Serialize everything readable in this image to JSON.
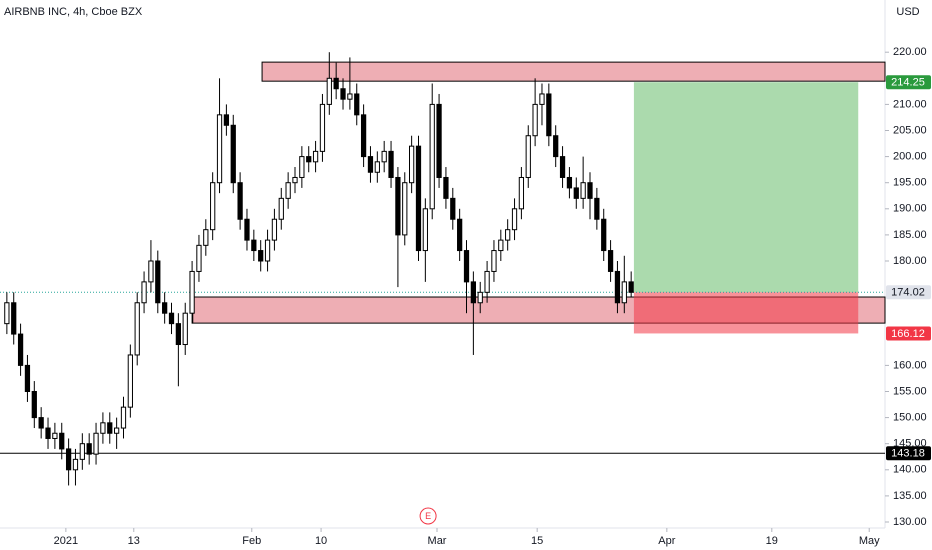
{
  "chart_data": {
    "type": "candlestick",
    "title": "AIRBNB INC, 4h, Cboe BZX",
    "currency": "USD",
    "up_color": "#ffffff",
    "down_color": "#000000",
    "border_color": "#000000",
    "open": [
      168,
      172,
      166,
      160,
      155,
      150,
      148,
      146,
      147,
      144,
      140,
      142,
      145,
      143,
      147,
      149,
      147,
      148,
      152,
      162,
      172,
      176,
      180,
      172,
      170,
      168,
      164,
      170,
      178,
      183,
      186,
      195,
      208,
      206,
      195,
      188,
      184,
      182,
      180,
      184,
      188,
      192,
      195,
      196,
      200,
      199,
      201,
      210,
      215,
      213,
      211,
      212,
      208,
      200,
      197,
      199,
      201,
      196,
      185,
      195,
      202,
      182,
      190,
      210,
      196,
      192,
      188,
      182,
      176,
      172,
      174,
      178,
      182,
      184,
      186,
      190,
      196,
      204,
      210,
      212,
      204,
      200,
      196,
      194,
      192,
      195,
      192,
      188,
      182,
      178,
      172,
      176
    ],
    "high": [
      174,
      174,
      168,
      162,
      157,
      152,
      150,
      149,
      149,
      146,
      144,
      147,
      147,
      149,
      151,
      151,
      150,
      154,
      164,
      174,
      178,
      184,
      182,
      174,
      172,
      170,
      172,
      180,
      185,
      188,
      197,
      215,
      210,
      208,
      197,
      190,
      186,
      184,
      186,
      190,
      194,
      197,
      198,
      202,
      202,
      203,
      212,
      220,
      218,
      215,
      219,
      214,
      210,
      202,
      201,
      203,
      203,
      198,
      197,
      204,
      204,
      192,
      214,
      212,
      198,
      194,
      190,
      184,
      178,
      176,
      180,
      184,
      186,
      188,
      192,
      198,
      206,
      215,
      214,
      214,
      206,
      202,
      198,
      196,
      200,
      197,
      194,
      190,
      184,
      180,
      181,
      178
    ],
    "low": [
      166,
      164,
      158,
      153,
      148,
      146,
      144,
      144,
      142,
      137,
      137,
      140,
      141,
      141,
      145,
      145,
      144,
      146,
      150,
      160,
      170,
      174,
      170,
      168,
      166,
      156,
      162,
      168,
      176,
      181,
      184,
      193,
      204,
      193,
      186,
      182,
      180,
      178,
      178,
      182,
      186,
      190,
      193,
      194,
      197,
      197,
      199,
      208,
      211,
      209,
      209,
      206,
      198,
      195,
      195,
      197,
      194,
      175,
      183,
      193,
      180,
      176,
      188,
      194,
      190,
      186,
      180,
      170,
      162,
      170,
      172,
      176,
      180,
      182,
      184,
      188,
      194,
      202,
      206,
      202,
      198,
      194,
      192,
      190,
      190,
      188,
      186,
      180,
      176,
      170,
      170,
      173
    ],
    "close": [
      172,
      166,
      160,
      155,
      150,
      148,
      146,
      147,
      144,
      140,
      142,
      145,
      143,
      147,
      149,
      147,
      148,
      152,
      162,
      172,
      176,
      180,
      172,
      170,
      168,
      164,
      170,
      178,
      183,
      186,
      195,
      208,
      206,
      195,
      188,
      184,
      182,
      180,
      184,
      188,
      192,
      195,
      196,
      200,
      199,
      201,
      210,
      215,
      213,
      211,
      212,
      208,
      200,
      197,
      199,
      201,
      196,
      185,
      195,
      202,
      182,
      190,
      210,
      196,
      192,
      188,
      182,
      176,
      172,
      174,
      178,
      182,
      184,
      186,
      190,
      196,
      204,
      210,
      212,
      204,
      200,
      196,
      194,
      192,
      195,
      192,
      188,
      182,
      178,
      172,
      176,
      174
    ],
    "xlim": [
      -1,
      128
    ],
    "xticks": [
      {
        "value": 8.6,
        "label": "2021"
      },
      {
        "value": 18.5,
        "label": "13"
      },
      {
        "value": 35.7,
        "label": "Feb"
      },
      {
        "value": 45.8,
        "label": "10"
      },
      {
        "value": 62.7,
        "label": "Mar"
      },
      {
        "value": 77.3,
        "label": "15"
      },
      {
        "value": 96.2,
        "label": "Apr"
      },
      {
        "value": 111.5,
        "label": "19"
      },
      {
        "value": 125.7,
        "label": "May"
      }
    ],
    "ylim": [
      128.85,
      230
    ],
    "yticks": [
      {
        "value": 130,
        "label": "130.00"
      },
      {
        "value": 135,
        "label": "135.00"
      },
      {
        "value": 140,
        "label": "140.00"
      },
      {
        "value": 145,
        "label": "145.00"
      },
      {
        "value": 150,
        "label": "150.00"
      },
      {
        "value": 155,
        "label": "155.00"
      },
      {
        "value": 160,
        "label": "160.00"
      },
      {
        "value": 180,
        "label": "180.00"
      },
      {
        "value": 185,
        "label": "185.00"
      },
      {
        "value": 190,
        "label": "190.00"
      },
      {
        "value": 195,
        "label": "195.00"
      },
      {
        "value": 200,
        "label": "200.00"
      },
      {
        "value": 205,
        "label": "205.00"
      },
      {
        "value": 210,
        "label": "210.00"
      },
      {
        "value": 220,
        "label": "220.00"
      }
    ],
    "zone_color": "rgba(226,120,130,0.6)",
    "zones": [
      {
        "x0": 37.2,
        "x1": 128,
        "top": 218.1,
        "bottom": 214.45
      },
      {
        "x0": 27.1,
        "x1": 128,
        "top": 173.1,
        "bottom": 168.1
      }
    ],
    "position": {
      "x0": 91.4,
      "x1": 124.1,
      "target": 214.25,
      "entry": 174.02,
      "stop": 166.12,
      "target_color": "#2a9a3d",
      "entry_color": "#e0e3eb",
      "stop_color": "#f23645",
      "profit_fill": "rgba(102,187,106,0.55)",
      "loss_fill": "rgba(242,54,69,0.55)"
    },
    "hline": {
      "price": 143.18,
      "color": "#000000"
    },
    "events": [
      {
        "x": 61.4,
        "label": "E",
        "color": "#f23645"
      }
    ]
  }
}
